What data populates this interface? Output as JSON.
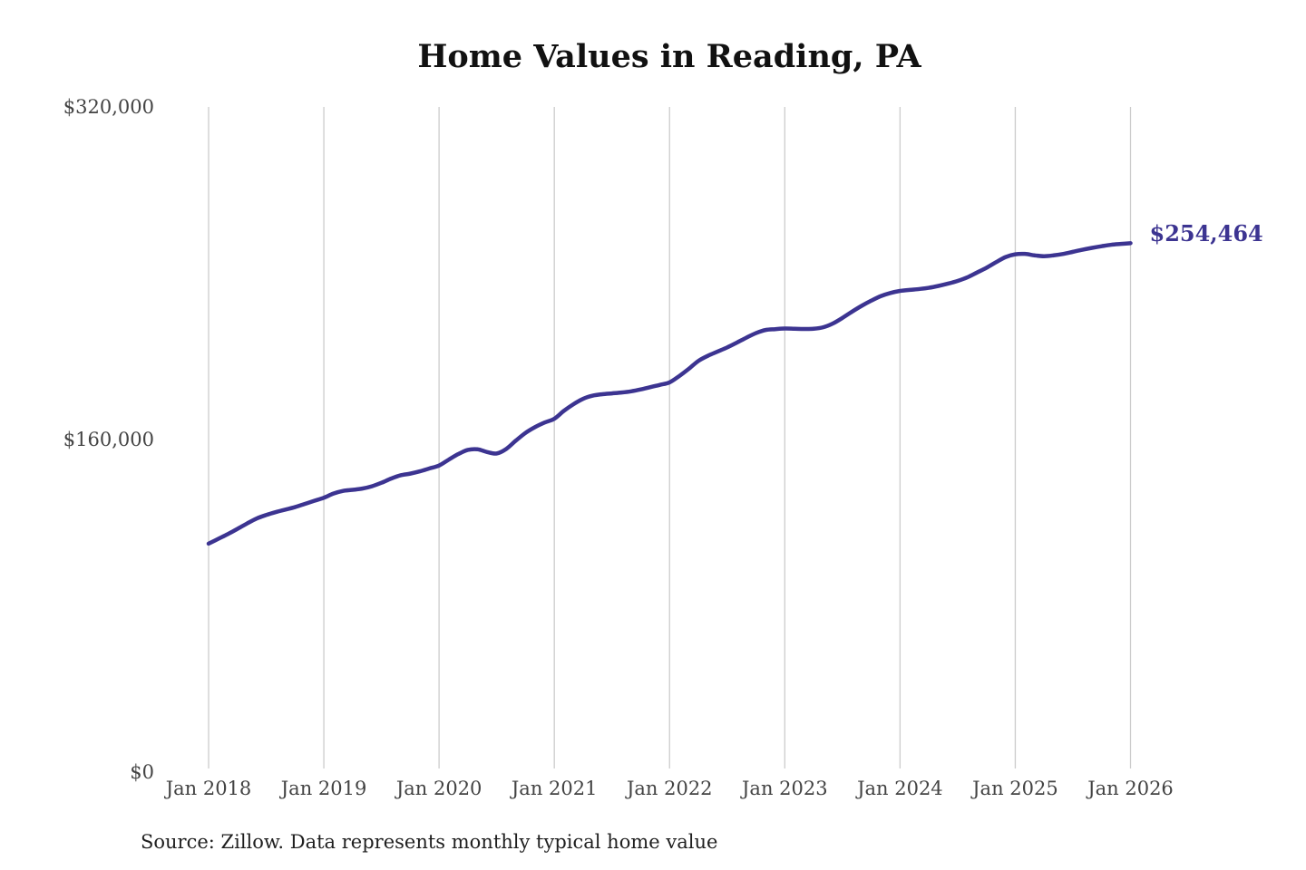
{
  "chart_data": {
    "type": "line",
    "title": "Home Values in Reading, PA",
    "source_note": "Source: Zillow. Data represents monthly typical home value",
    "x_start": "2018-01",
    "x_end": "2026-01",
    "x_step": "monthly",
    "ylim": [
      0,
      320000
    ],
    "grid": "vertical-only",
    "legend": "none",
    "line_color": "#3c3491",
    "gridline_color": "#cccccc",
    "tick_label_color": "#434343",
    "end_label": "$254,464",
    "end_value": 254464,
    "y_ticks": [
      {
        "label": "$320,000",
        "value": 320000
      },
      {
        "label": "$160,000",
        "value": 160000
      },
      {
        "label": "$0",
        "value": 0
      }
    ],
    "x_ticks": [
      {
        "label": "Jan 2018",
        "month_index": 0
      },
      {
        "label": "Jan 2019",
        "month_index": 12
      },
      {
        "label": "Jan 2020",
        "month_index": 24
      },
      {
        "label": "Jan 2021",
        "month_index": 36
      },
      {
        "label": "Jan 2022",
        "month_index": 48
      },
      {
        "label": "Jan 2023",
        "month_index": 60
      },
      {
        "label": "Jan 2024",
        "month_index": 72
      },
      {
        "label": "Jan 2025",
        "month_index": 84
      },
      {
        "label": "Jan 2026",
        "month_index": 96
      }
    ],
    "series": [
      {
        "name": "Monthly typical home value",
        "values": [
          109900,
          112200,
          114500,
          117000,
          119600,
          122000,
          123700,
          125100,
          126300,
          127500,
          129000,
          130500,
          132000,
          134000,
          135300,
          135800,
          136400,
          137500,
          139200,
          141200,
          142800,
          143600,
          144700,
          146100,
          147500,
          150300,
          153000,
          155000,
          155300,
          154000,
          153300,
          155500,
          159500,
          163200,
          166000,
          168200,
          170000,
          173800,
          177000,
          179600,
          181100,
          181800,
          182200,
          182600,
          183200,
          184100,
          185200,
          186300,
          187500,
          190500,
          194000,
          197800,
          200300,
          202300,
          204300,
          206600,
          209000,
          211200,
          212700,
          213100,
          213400,
          213300,
          213200,
          213300,
          214000,
          215800,
          218500,
          221500,
          224300,
          226800,
          229000,
          230500,
          231500,
          232000,
          232400,
          233000,
          233900,
          235000,
          236300,
          238000,
          240300,
          242600,
          245300,
          247800,
          249100,
          249300,
          248600,
          248200,
          248600,
          249300,
          250300,
          251300,
          252200,
          253000,
          253700,
          254100,
          254464
        ]
      }
    ]
  }
}
